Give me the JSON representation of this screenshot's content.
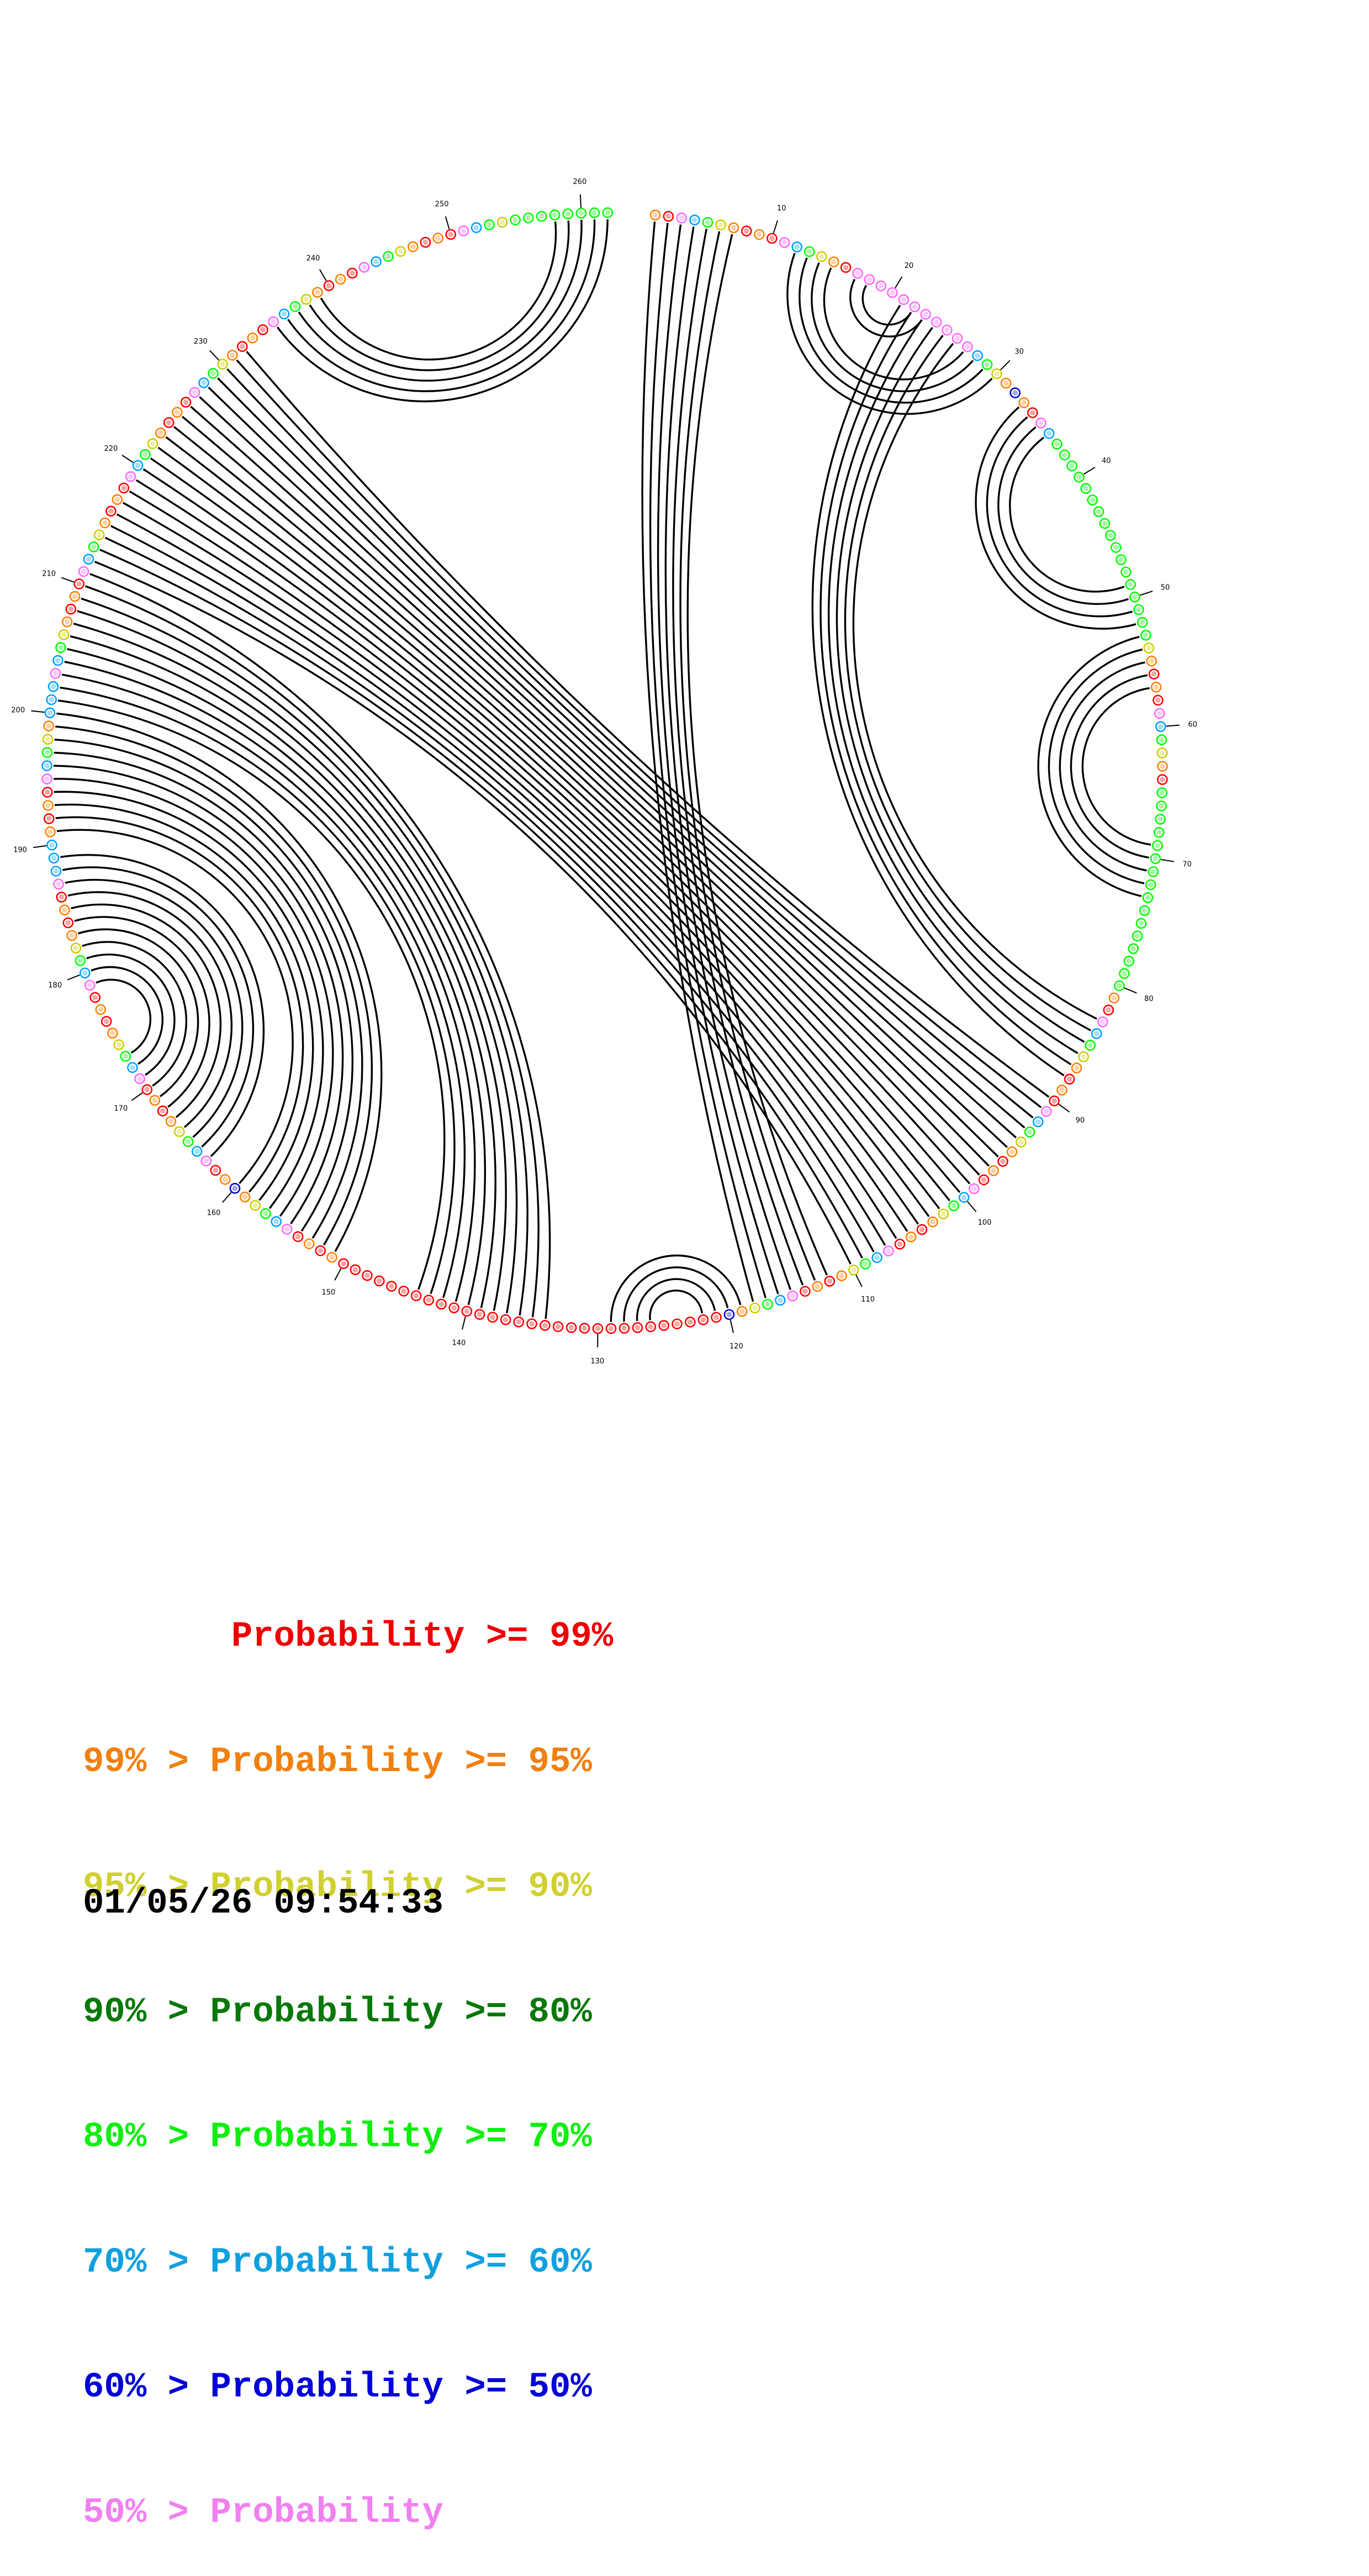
{
  "diagram": {
    "sequence_length": 262,
    "tick_labels": [
      "10",
      "20",
      "30",
      "40",
      "50",
      "60",
      "70",
      "80",
      "90",
      "100",
      "110",
      "120",
      "130",
      "140",
      "150",
      "160",
      "170",
      "180",
      "190",
      "200",
      "210",
      "220",
      "230",
      "240",
      "250",
      "260"
    ],
    "base_pairs": [
      [
        1,
        118
      ],
      [
        2,
        117
      ],
      [
        3,
        116
      ],
      [
        4,
        115
      ],
      [
        5,
        114
      ],
      [
        6,
        113
      ],
      [
        7,
        112
      ],
      [
        12,
        30
      ],
      [
        13,
        29
      ],
      [
        14,
        28
      ],
      [
        15,
        27
      ],
      [
        17,
        23
      ],
      [
        18,
        22
      ],
      [
        21,
        88
      ],
      [
        22,
        87
      ],
      [
        23,
        86
      ],
      [
        24,
        85
      ],
      [
        25,
        84
      ],
      [
        26,
        83
      ],
      [
        33,
        52
      ],
      [
        34,
        51
      ],
      [
        35,
        50
      ],
      [
        36,
        49
      ],
      [
        53,
        73
      ],
      [
        54,
        72
      ],
      [
        55,
        71
      ],
      [
        56,
        70
      ],
      [
        57,
        69
      ],
      [
        90,
        232
      ],
      [
        91,
        231
      ],
      [
        92,
        230
      ],
      [
        93,
        229
      ],
      [
        94,
        228
      ],
      [
        95,
        227
      ],
      [
        96,
        226
      ],
      [
        97,
        225
      ],
      [
        98,
        224
      ],
      [
        99,
        223
      ],
      [
        100,
        222
      ],
      [
        101,
        221
      ],
      [
        102,
        220
      ],
      [
        103,
        219
      ],
      [
        104,
        218
      ],
      [
        105,
        217
      ],
      [
        106,
        216
      ],
      [
        107,
        215
      ],
      [
        108,
        214
      ],
      [
        109,
        213
      ],
      [
        110,
        212
      ],
      [
        119,
        129
      ],
      [
        120,
        128
      ],
      [
        121,
        127
      ],
      [
        122,
        126
      ],
      [
        134,
        211
      ],
      [
        135,
        210
      ],
      [
        136,
        209
      ],
      [
        137,
        208
      ],
      [
        138,
        207
      ],
      [
        139,
        206
      ],
      [
        140,
        205
      ],
      [
        141,
        204
      ],
      [
        142,
        203
      ],
      [
        143,
        202
      ],
      [
        144,
        201
      ],
      [
        151,
        200
      ],
      [
        152,
        199
      ],
      [
        153,
        198
      ],
      [
        154,
        197
      ],
      [
        155,
        196
      ],
      [
        156,
        195
      ],
      [
        157,
        194
      ],
      [
        158,
        193
      ],
      [
        159,
        192
      ],
      [
        160,
        191
      ],
      [
        163,
        189
      ],
      [
        164,
        188
      ],
      [
        165,
        187
      ],
      [
        166,
        186
      ],
      [
        167,
        185
      ],
      [
        168,
        184
      ],
      [
        169,
        183
      ],
      [
        170,
        182
      ],
      [
        171,
        181
      ],
      [
        172,
        180
      ],
      [
        173,
        179
      ],
      [
        235,
        262
      ],
      [
        236,
        261
      ],
      [
        237,
        260
      ],
      [
        238,
        259
      ],
      [
        239,
        258
      ]
    ],
    "base_colors": {
      "red": "#ff0000",
      "orange": "#ff8000",
      "yellow": "#cccc00",
      "dark_green": "#008000",
      "green": "#00ff00",
      "light_blue": "#00a0ff",
      "blue": "#0000cc",
      "pink": "#ff66ff"
    }
  },
  "legend": [
    {
      "text": "       Probability >= 99%",
      "color": "#ee0000"
    },
    {
      "text": "99% > Probability >= 95%",
      "color": "#f08010"
    },
    {
      "text": "95% > Probability >= 90%",
      "color": "#d0d030"
    },
    {
      "text": "90% > Probability >= 80%",
      "color": "#087808"
    },
    {
      "text": "80% > Probability >= 70%",
      "color": "#10ee10"
    },
    {
      "text": "70% > Probability >= 60%",
      "color": "#10a0e0"
    },
    {
      "text": "60% > Probability >= 50%",
      "color": "#0000d8"
    },
    {
      "text": "50% > Probability",
      "color": "#f080f0"
    }
  ],
  "timestamp": "01/05/26 09:54:33"
}
